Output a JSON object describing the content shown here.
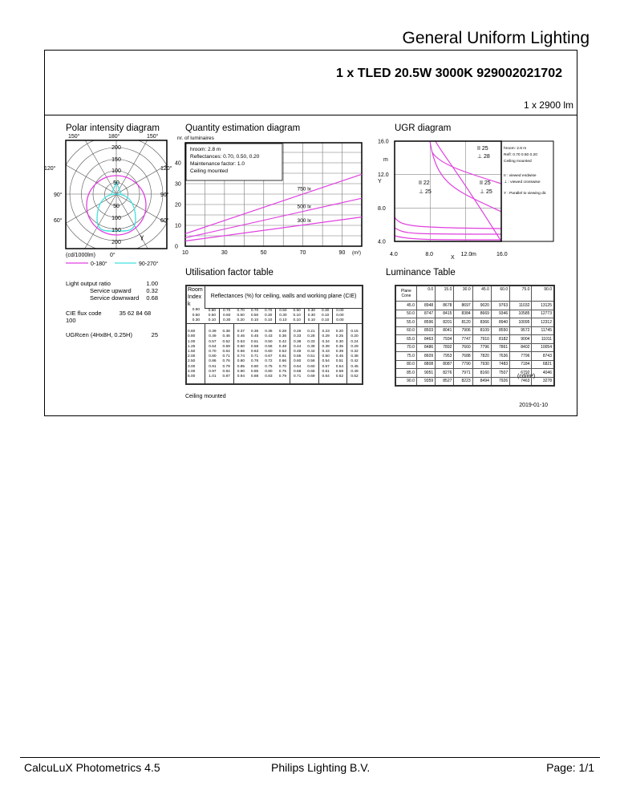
{
  "header": {
    "title": "General Uniform Lighting",
    "luminaire": "1 x TLED 20.5W 3000K 929002021702",
    "flux": "1 x 2900 lm"
  },
  "polar": {
    "title": "Polar intensity diagram",
    "angles": [
      "150°",
      "180°",
      "150°",
      "120°",
      "120°",
      "90°",
      "90°",
      "60°",
      "60°",
      "0°"
    ],
    "rings": [
      "200",
      "150",
      "100",
      "50",
      "50",
      "100",
      "150",
      "200"
    ],
    "unit": "(cd/1000lm)",
    "gamma": "ɣ",
    "legend": [
      {
        "label": "0-180°",
        "color": "#e040e0"
      },
      {
        "label": "90-270°",
        "color": "#40e0e0"
      }
    ]
  },
  "quantity": {
    "title": "Quantity estimation diagram",
    "ylabel": "nr. of luminaires",
    "yticks": [
      "0",
      "10",
      "20",
      "30",
      "40"
    ],
    "xticks": [
      "10",
      "30",
      "50",
      "70",
      "90"
    ],
    "xunit": "(m²)",
    "info": [
      "hroom: 2.8 m",
      "Reflectances:  0.70, 0.50, 0.20",
      "Maintenance factor:  1.0",
      "Ceiling mounted"
    ],
    "series": [
      {
        "name": "750 lx",
        "x": [
          10,
          100
        ],
        "y": [
          6,
          34.5
        ]
      },
      {
        "name": "500 lx",
        "x": [
          10,
          100
        ],
        "y": [
          4,
          23
        ]
      },
      {
        "name": "300 lx",
        "x": [
          10,
          100
        ],
        "y": [
          2.5,
          14
        ]
      }
    ],
    "line_color": "#e040e0"
  },
  "ugr": {
    "title": "UGR diagram",
    "yticks": [
      "16.0",
      "12.0",
      "8.0",
      "4.0"
    ],
    "ylabel_m": "m",
    "ylabel_y": "Y",
    "xticks": [
      "4.0",
      "8.0",
      "12.0",
      "16.0"
    ],
    "xlabel_m": "m",
    "xlabel_x": "X",
    "labels": [
      "II 25",
      "⊥ 28",
      "II 22",
      "⊥ 25",
      "II 25",
      "⊥ 25"
    ],
    "info": [
      "hroom: 2.8 m",
      "Refl: 0.70 0.50 0.20",
      "Ceiling mounted",
      "II : viewed endwise",
      "⊥ : viewed crosswise",
      "Y  : Parallel to viewing dir."
    ]
  },
  "lor": {
    "rows": [
      {
        "label": "Light output ratio",
        "value": "1.00"
      },
      {
        "label": "Service upward",
        "value": "0.32"
      },
      {
        "label": "Service downward",
        "value": "0.68"
      }
    ],
    "cie_label": "CIE flux code",
    "cie_value": "35 62 84 68 100",
    "ugr_label": "UGRcen (4Hx8H, 0.25H)",
    "ugr_value": "25"
  },
  "uf": {
    "title": "Utilisation factor table",
    "header": "Reflectances (%) for ceiling, walls and working plane (CIE)",
    "room_index": [
      "Room",
      "Index",
      "k"
    ],
    "refl": [
      [
        "0.80",
        "0.80",
        "0.70",
        "0.70",
        "0.70",
        "0.70",
        "0.50",
        "0.50",
        "0.30",
        "0.30",
        "0.00"
      ],
      [
        "0.50",
        "0.50",
        "0.50",
        "0.50",
        "0.50",
        "0.30",
        "0.30",
        "0.10",
        "0.30",
        "0.10",
        "0.00"
      ],
      [
        "0.30",
        "0.10",
        "0.30",
        "0.20",
        "0.10",
        "0.10",
        "0.10",
        "0.10",
        "0.10",
        "0.10",
        "0.00"
      ]
    ],
    "rows": [
      [
        "0.60",
        "0.39",
        "0.38",
        "0.37",
        "0.36",
        "0.36",
        "0.28",
        "0.26",
        "0.21",
        "0.23",
        "0.20",
        "0.15"
      ],
      [
        "0.80",
        "0.49",
        "0.46",
        "0.46",
        "0.45",
        "0.43",
        "0.36",
        "0.33",
        "0.28",
        "0.29",
        "0.25",
        "0.20"
      ],
      [
        "1.00",
        "0.57",
        "0.52",
        "0.53",
        "0.51",
        "0.50",
        "0.42",
        "0.38",
        "0.33",
        "0.34",
        "0.30",
        "0.24"
      ],
      [
        "1.25",
        "0.64",
        "0.59",
        "0.60",
        "0.58",
        "0.56",
        "0.48",
        "0.44",
        "0.39",
        "0.39",
        "0.35",
        "0.29"
      ],
      [
        "1.50",
        "0.70",
        "0.64",
        "0.66",
        "0.63",
        "0.60",
        "0.53",
        "0.48",
        "0.44",
        "0.43",
        "0.39",
        "0.32"
      ],
      [
        "2.00",
        "0.80",
        "0.71",
        "0.74",
        "0.71",
        "0.67",
        "0.61",
        "0.55",
        "0.51",
        "0.50",
        "0.46",
        "0.38"
      ],
      [
        "2.50",
        "0.86",
        "0.76",
        "0.80",
        "0.76",
        "0.72",
        "0.66",
        "0.60",
        "0.56",
        "0.54",
        "0.51",
        "0.42"
      ],
      [
        "3.00",
        "0.91",
        "0.79",
        "0.85",
        "0.80",
        "0.75",
        "0.70",
        "0.64",
        "0.60",
        "0.57",
        "0.54",
        "0.45"
      ],
      [
        "4.00",
        "0.97",
        "0.84",
        "0.90",
        "0.85",
        "0.80",
        "0.75",
        "0.68",
        "0.65",
        "0.61",
        "0.59",
        "0.49"
      ],
      [
        "5.00",
        "1.01",
        "0.87",
        "0.94",
        "0.88",
        "0.83",
        "0.79",
        "0.71",
        "0.69",
        "0.64",
        "0.62",
        "0.52"
      ]
    ],
    "note": "Ceiling mounted"
  },
  "luminance": {
    "title": "Luminance Table",
    "corner": [
      "Plane",
      "Cone"
    ],
    "cols": [
      "0.0",
      "15.0",
      "30.0",
      "45.0",
      "60.0",
      "75.0",
      "90.0"
    ],
    "rows": [
      [
        "45.0",
        "8948",
        "8678",
        "8697",
        "9020",
        "9763",
        "11032",
        "13125"
      ],
      [
        "50.0",
        "8747",
        "8415",
        "8384",
        "8669",
        "9346",
        "10585",
        "12773"
      ],
      [
        "55.0",
        "8596",
        "8201",
        "8120",
        "8366",
        "8940",
        "10095",
        "12312"
      ],
      [
        "60.0",
        "8503",
        "8041",
        "7906",
        "8109",
        "8550",
        "9572",
        "11745"
      ],
      [
        "65.0",
        "8463",
        "7934",
        "7747",
        "7910",
        "8182",
        "9004",
        "11011"
      ],
      [
        "70.0",
        "8486",
        "7892",
        "7660",
        "7796",
        "7861",
        "8402",
        "10054"
      ],
      [
        "75.0",
        "8609",
        "7953",
        "7688",
        "7820",
        "7636",
        "7796",
        "8743"
      ],
      [
        "80.0",
        "8808",
        "8087",
        "7790",
        "7930",
        "7483",
        "7184",
        "6821"
      ],
      [
        "85.0",
        "9051",
        "8276",
        "7971",
        "8160",
        "7507",
        "6792",
        "4046"
      ],
      [
        "90.0",
        "9359",
        "8527",
        "8223",
        "8494",
        "7926",
        "7463",
        "3278"
      ]
    ],
    "unit": "(cd/m²)"
  },
  "date": "2019-01-10",
  "footer": {
    "left": "CalcuLuX Photometrics 4.5",
    "center": "Philips Lighting B.V.",
    "right": "Page: 1/1"
  }
}
